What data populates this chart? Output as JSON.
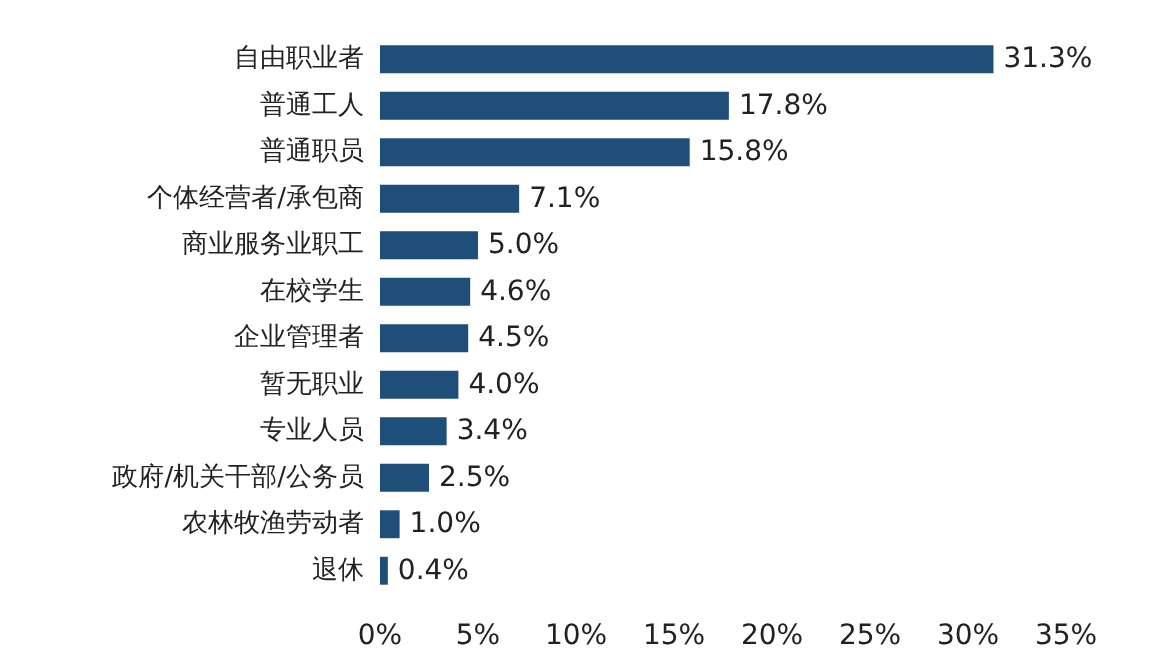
{
  "chart_data": {
    "type": "bar",
    "orientation": "horizontal",
    "categories": [
      "自由职业者",
      "普通工人",
      "普通职员",
      "个体经营者/承包商",
      "商业服务业职工",
      "在校学生",
      "企业管理者",
      "暂无职业",
      "专业人员",
      "政府/机关干部/公务员",
      "农林牧渔劳动者",
      "退休"
    ],
    "values": [
      31.3,
      17.8,
      15.8,
      7.1,
      5.0,
      4.6,
      4.5,
      4.0,
      3.4,
      2.5,
      1.0,
      0.4
    ],
    "value_labels": [
      "31.3%",
      "17.8%",
      "15.8%",
      "7.1%",
      "5.0%",
      "4.6%",
      "4.5%",
      "4.0%",
      "3.4%",
      "2.5%",
      "1.0%",
      "0.4%"
    ],
    "color": "#1f4e79",
    "xlim": [
      0,
      35
    ],
    "xticks": [
      {
        "value": 0,
        "label": "0%"
      },
      {
        "value": 5,
        "label": "5%"
      },
      {
        "value": 10,
        "label": "10%"
      },
      {
        "value": 15,
        "label": "15%"
      },
      {
        "value": 20,
        "label": "20%"
      },
      {
        "value": 25,
        "label": "25%"
      },
      {
        "value": 30,
        "label": "30%"
      },
      {
        "value": 35,
        "label": "35%"
      }
    ],
    "grid": false
  }
}
